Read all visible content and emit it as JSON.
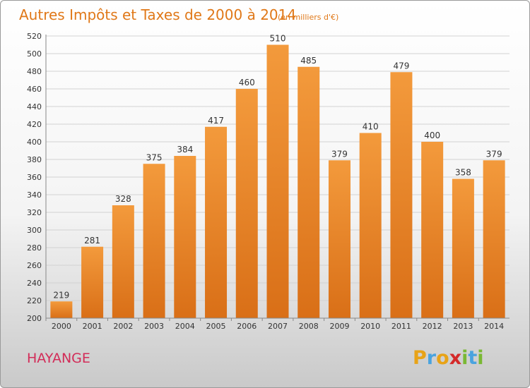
{
  "chart_data": {
    "type": "bar",
    "title": "Autres Impôts et Taxes de 2000 à 2014",
    "subtitle": "(en milliers d'€)",
    "categories": [
      "2000",
      "2001",
      "2002",
      "2003",
      "2004",
      "2005",
      "2006",
      "2007",
      "2008",
      "2009",
      "2010",
      "2011",
      "2012",
      "2013",
      "2014"
    ],
    "values": [
      219,
      281,
      328,
      375,
      384,
      417,
      460,
      510,
      485,
      379,
      410,
      479,
      400,
      358,
      379
    ],
    "ylim": [
      200,
      520
    ],
    "yticks": [
      200,
      220,
      240,
      260,
      280,
      300,
      320,
      340,
      360,
      380,
      400,
      420,
      440,
      460,
      480,
      500,
      520
    ],
    "grid": true,
    "bar_color": "#f39a3c",
    "bar_color_dark": "#d96f17"
  },
  "footer": {
    "city": "HAYANGE",
    "brand_letters": [
      "P",
      "r",
      "o",
      "x",
      "i",
      "t",
      "i"
    ],
    "brand_colors": [
      "#e8a317",
      "#4aa3df",
      "#e8a317",
      "#d42a2a",
      "#7ab834",
      "#4aa3df",
      "#7ab834"
    ]
  }
}
